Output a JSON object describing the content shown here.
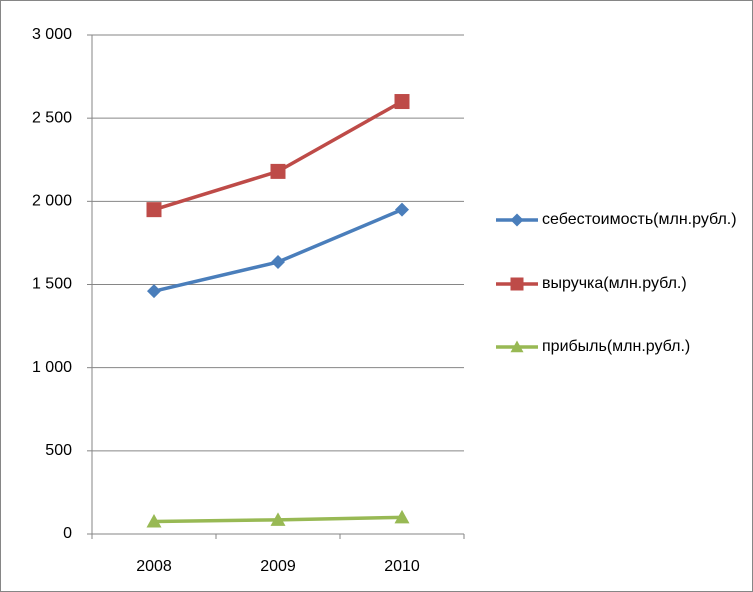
{
  "chart_data": {
    "type": "line",
    "categories": [
      "2008",
      "2009",
      "2010"
    ],
    "series": [
      {
        "name": "себестоимость(млн.рубл.)",
        "color": "#4a7ebb",
        "marker": "diamond",
        "values": [
          1460,
          1635,
          1950
        ]
      },
      {
        "name": "выручка(млн.рубл.)",
        "color": "#be4b48",
        "marker": "square",
        "values": [
          1950,
          2180,
          2600
        ]
      },
      {
        "name": "прибыль(млн.рубл.)",
        "color": "#98b954",
        "marker": "triangle",
        "values": [
          75,
          85,
          100
        ]
      }
    ],
    "ylim": [
      0,
      3000
    ],
    "yticks": [
      0,
      500,
      {
        "value": 1000,
        "label": "1 000"
      },
      {
        "value": 1500,
        "label": "1 500"
      },
      {
        "value": 2000,
        "label": "2 000"
      },
      {
        "value": 2500,
        "label": "2 500"
      },
      {
        "value": 3000,
        "label": "3 000"
      }
    ],
    "grid": true,
    "legend": "right"
  }
}
